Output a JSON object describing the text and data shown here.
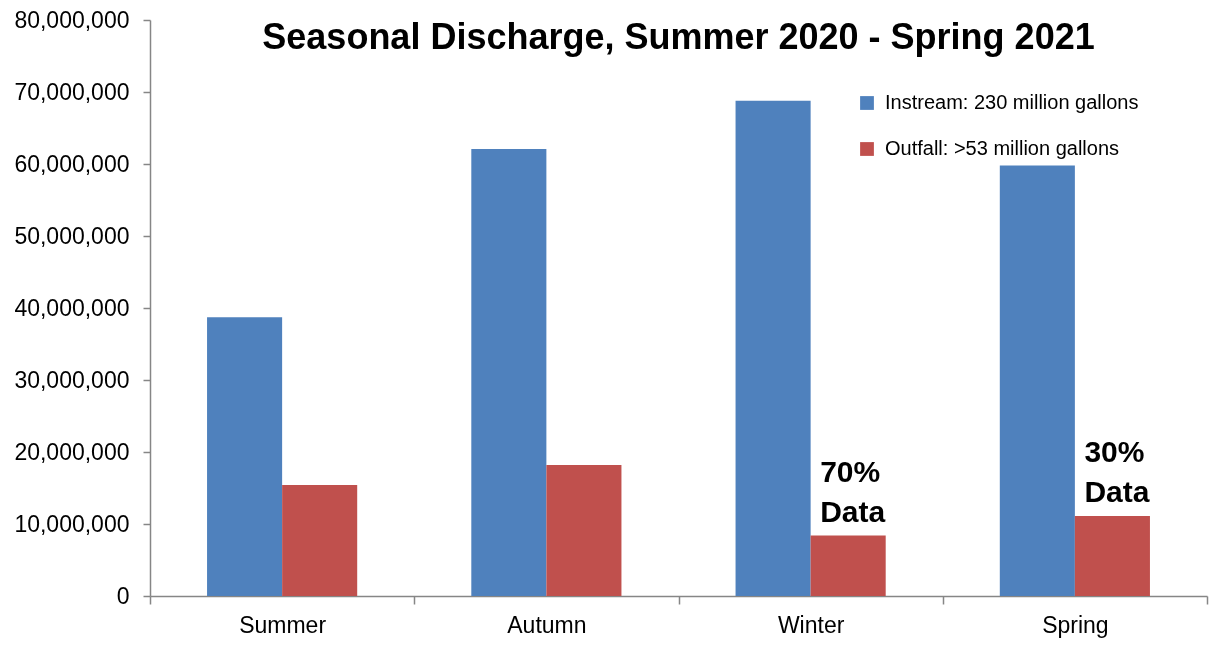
{
  "chart_data": {
    "type": "bar",
    "title": "Seasonal Discharge, Summer 2020 - Spring 2021",
    "categories": [
      "Summer",
      "Autumn",
      "Winter",
      "Spring"
    ],
    "series": [
      {
        "name": "Instream:  230 million gallons",
        "color": "#4f81bd",
        "values": [
          38700000,
          62100000,
          68800000,
          59800000
        ]
      },
      {
        "name": "Outfall:  >53 million gallons",
        "color": "#c0504d",
        "values": [
          15400000,
          18200000,
          8400000,
          11100000
        ]
      }
    ],
    "ylim": [
      0,
      80000000
    ],
    "yticks": [
      0,
      {
        "value": 10000000,
        "label": "10,000,000"
      },
      {
        "value": 20000000,
        "label": "20,000,000"
      },
      {
        "value": 30000000,
        "label": "30,000,000"
      },
      {
        "value": 40000000,
        "label": "40,000,000"
      },
      {
        "value": 50000000,
        "label": "50,000,000"
      },
      {
        "value": 60000000,
        "label": "60,000,000"
      },
      {
        "value": 70000000,
        "label": "70,000,000"
      },
      {
        "value": 80000000,
        "label": "80,000,000"
      }
    ],
    "legend": "top right",
    "annotations": [
      {
        "text": "70%\nData",
        "x": "Winter",
        "y": 8400000
      },
      {
        "text": "30%\nData",
        "x": "Spring",
        "y": 11100000
      }
    ]
  }
}
